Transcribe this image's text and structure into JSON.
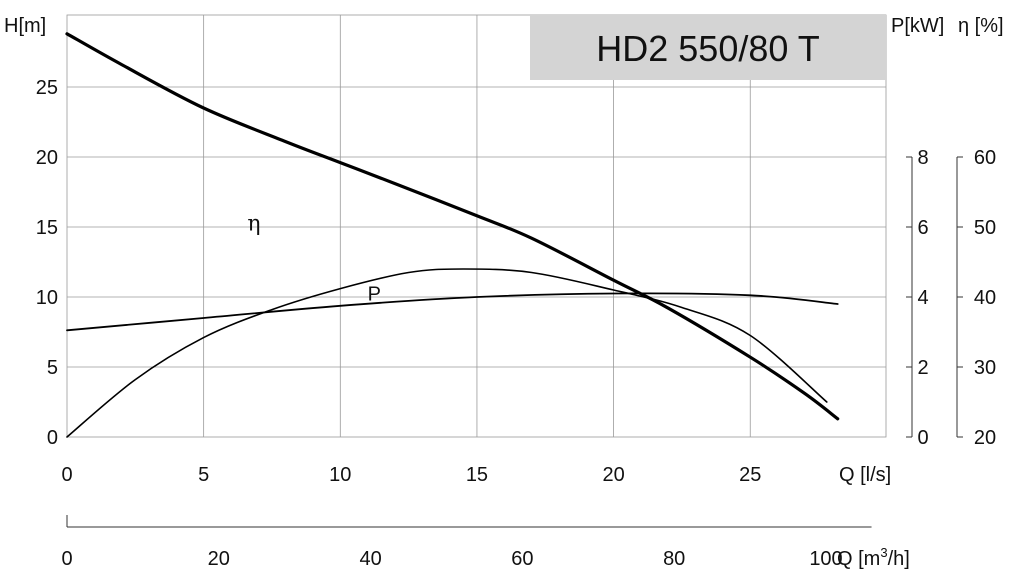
{
  "chart_data": {
    "type": "line",
    "title": "HD2 550/80 T",
    "x_axis": {
      "label": "Q [l/s]",
      "range": [
        0,
        30
      ],
      "ticks": [
        0,
        5,
        10,
        15,
        20,
        25
      ]
    },
    "x2_axis": {
      "label": "Q [m",
      "label_sup": "3",
      "label_tail": "/h]",
      "range": [
        0,
        108
      ],
      "ticks": [
        0,
        20,
        40,
        60,
        80,
        100
      ]
    },
    "y_left": {
      "label": "H[m]",
      "range": [
        0,
        30
      ],
      "ticks": [
        0,
        5,
        10,
        15,
        20,
        25
      ]
    },
    "y_power": {
      "label": "P[kW]",
      "range": [
        0,
        8
      ],
      "ticks": [
        0,
        2,
        4,
        6,
        8
      ]
    },
    "y_eff": {
      "label": "η [%]",
      "range": [
        20,
        60
      ],
      "ticks": [
        20,
        30,
        40,
        50,
        60
      ]
    },
    "series": [
      {
        "name": "H",
        "axis": "y_left",
        "points": [
          [
            0,
            28.8
          ],
          [
            2,
            26.6
          ],
          [
            5,
            23.5
          ],
          [
            8,
            21.1
          ],
          [
            10,
            19.6
          ],
          [
            12,
            18.1
          ],
          [
            15,
            15.8
          ],
          [
            17,
            14.2
          ],
          [
            20,
            11.2
          ],
          [
            22,
            9.2
          ],
          [
            25,
            5.7
          ],
          [
            27,
            3.1
          ],
          [
            28.2,
            1.3
          ]
        ]
      },
      {
        "name": "P",
        "label": "P",
        "axis": "y_power",
        "points": [
          [
            0,
            3.05
          ],
          [
            5,
            3.4
          ],
          [
            10,
            3.75
          ],
          [
            15,
            4.0
          ],
          [
            20,
            4.1
          ],
          [
            25,
            4.05
          ],
          [
            28.2,
            3.8
          ]
        ]
      },
      {
        "name": "η",
        "label": "η",
        "axis": "y_eff",
        "points": [
          [
            0,
            20.0
          ],
          [
            2.5,
            28.2
          ],
          [
            5,
            34.2
          ],
          [
            7.5,
            38.2
          ],
          [
            10,
            41.2
          ],
          [
            12.5,
            43.5
          ],
          [
            14.5,
            44.0
          ],
          [
            17,
            43.5
          ],
          [
            20,
            41.0
          ],
          [
            22.5,
            38.5
          ],
          [
            25,
            34.5
          ],
          [
            27.8,
            25.0
          ]
        ]
      }
    ],
    "grid": true
  }
}
